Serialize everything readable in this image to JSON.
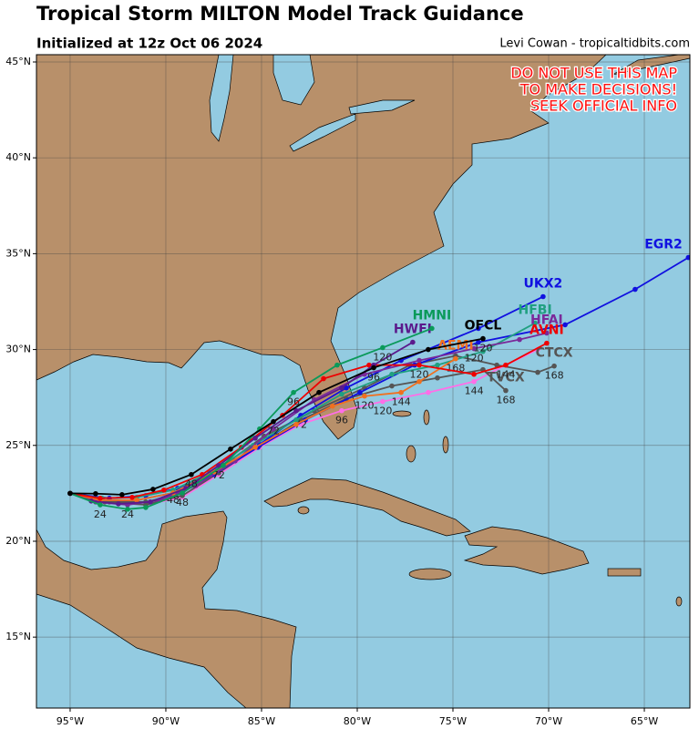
{
  "header": {
    "title": "Tropical Storm MILTON Model Track Guidance",
    "subtitle": "Initialized at 12z Oct 06 2024",
    "credit": "Levi Cowan - tropicaltidbits.com"
  },
  "warning": [
    "DO NOT USE THIS MAP",
    "TO MAKE DECISIONS!",
    "SEEK OFFICIAL INFO"
  ],
  "map": {
    "lon_range": [
      -96.76,
      -62.62
    ],
    "lat_range": [
      11.3,
      45.38
    ],
    "lon_ticks": [
      {
        "value": -95,
        "label": "95°W"
      },
      {
        "value": -90,
        "label": "90°W"
      },
      {
        "value": -85,
        "label": "85°W"
      },
      {
        "value": -80,
        "label": "80°W"
      },
      {
        "value": -75,
        "label": "75°W"
      },
      {
        "value": -70,
        "label": "70°W"
      },
      {
        "value": -65,
        "label": "65°W"
      }
    ],
    "lat_ticks": [
      {
        "value": 15,
        "label": "15°N"
      },
      {
        "value": 20,
        "label": "20°N"
      },
      {
        "value": 25,
        "label": "25°N"
      },
      {
        "value": 30,
        "label": "30°N"
      },
      {
        "value": 35,
        "label": "35°N"
      },
      {
        "value": 40,
        "label": "40°N"
      },
      {
        "value": 45,
        "label": "45°N"
      }
    ]
  },
  "tracks": [
    {
      "color": "#ff6ee8",
      "lon": [
        -95,
        -93.19,
        -91.05,
        -89.14,
        -87.24,
        -85.1,
        -82.95,
        -80.81,
        -78.67,
        -76.29,
        -73.9,
        -72.24,
        -70.57
      ],
      "lat": [
        22.5,
        22.05,
        21.9,
        22.29,
        23.48,
        24.9,
        26.1,
        26.81,
        27.29,
        27.76,
        28.33,
        29.19,
        30.0
      ],
      "hours": [
        null,
        null,
        null,
        null,
        null,
        null,
        null,
        "96",
        "120",
        null,
        "144",
        null,
        null
      ]
    },
    {
      "name": "CTCX",
      "color": "#555555",
      "lon": [
        -95,
        -92.95,
        -91.05,
        -89.14,
        -87.0,
        -84.86,
        -82.24,
        -79.62,
        -77.24,
        -74.86,
        -72.71,
        -70.57,
        -69.71
      ],
      "lat": [
        22.5,
        22.05,
        22.05,
        22.52,
        23.95,
        25.48,
        26.81,
        28.0,
        29.19,
        29.67,
        29.19,
        28.81,
        29.14
      ],
      "hours": [
        null,
        null,
        null,
        null,
        null,
        null,
        null,
        null,
        null,
        null,
        null,
        null,
        "168"
      ]
    },
    {
      "name": "TVCX",
      "color": "#555555",
      "lon": [
        -95,
        -93.19,
        -91.05,
        -89.14,
        -87.24,
        -85.1,
        -82.95,
        -80.57,
        -78.19,
        -75.81,
        -73.43,
        -72.24
      ],
      "lat": [
        22.5,
        22.05,
        21.9,
        22.38,
        23.57,
        25.0,
        26.33,
        27.43,
        28.1,
        28.52,
        28.95,
        27.86
      ],
      "hours": [
        null,
        null,
        null,
        null,
        null,
        null,
        null,
        null,
        null,
        null,
        null,
        "168"
      ]
    },
    {
      "name": "EGR2",
      "color": "#1010e0",
      "lon": [
        -95,
        -93.43,
        -91.52,
        -89.62,
        -87.48,
        -85.19,
        -82.71,
        -79.86,
        -77.0,
        -73.67,
        -69.14,
        -65.48,
        -62.7
      ],
      "lat": [
        22.5,
        22.14,
        22.14,
        22.52,
        23.48,
        24.9,
        26.33,
        27.76,
        29.19,
        30.38,
        31.29,
        33.14,
        34.8
      ],
      "hours": [
        null,
        null,
        null,
        null,
        null,
        null,
        null,
        null,
        null,
        null,
        null,
        null,
        null
      ]
    },
    {
      "name": "UKX2",
      "color": "#1010e0",
      "lon": [
        -95,
        -92.95,
        -91.05,
        -89.38,
        -87.24,
        -85.1,
        -82.95,
        -80.57,
        -77.71,
        -73.67,
        -70.29
      ],
      "lat": [
        22.5,
        22.24,
        22.38,
        22.76,
        23.71,
        25.05,
        26.57,
        28.0,
        29.43,
        31.1,
        32.76
      ],
      "hours": [
        null,
        null,
        null,
        null,
        null,
        null,
        "72",
        null,
        null,
        null,
        null
      ]
    },
    {
      "name": "HFBI",
      "color": "#20a080",
      "lon": [
        -95,
        -93.33,
        -91.52,
        -89.62,
        -87.71,
        -85.43,
        -83.19,
        -80.81,
        -78.19,
        -75.81,
        -73.43,
        -70.71
      ],
      "lat": [
        22.5,
        22.24,
        22.29,
        22.67,
        23.57,
        25.0,
        26.33,
        27.67,
        28.71,
        29.19,
        29.9,
        31.38
      ],
      "hours": [
        null,
        null,
        null,
        "48",
        null,
        null,
        null,
        null,
        null,
        null,
        null,
        null
      ]
    },
    {
      "name": "HFAI",
      "color": "#7a2a9a",
      "lon": [
        -95,
        -93.67,
        -92.0,
        -90.33,
        -88.43,
        -86.38,
        -84.38,
        -82.24,
        -79.62,
        -76.76,
        -73.9,
        -71.52,
        -70.1
      ],
      "lat": [
        22.5,
        22.05,
        21.9,
        22.14,
        22.9,
        24.19,
        25.86,
        27.38,
        28.71,
        29.43,
        30.05,
        30.52,
        30.86
      ],
      "hours": [
        null,
        null,
        "24",
        null,
        null,
        null,
        null,
        null,
        null,
        null,
        "120",
        null,
        null
      ]
    },
    {
      "name": "AEMI",
      "color": "#f07020",
      "lon": [
        -95,
        -93.43,
        -91.52,
        -89.62,
        -87.48,
        -85.33,
        -83.19,
        -81.29,
        -79.62,
        -77.71,
        -76.76,
        -74.86
      ],
      "lat": [
        22.5,
        22.14,
        22.14,
        22.52,
        23.62,
        24.9,
        26.1,
        27.05,
        27.57,
        27.76,
        28.33,
        29.52
      ],
      "hours": [
        null,
        null,
        null,
        null,
        null,
        null,
        null,
        null,
        "120",
        "144",
        null,
        "168"
      ]
    },
    {
      "name": "AVNI",
      "color": "#ee0000",
      "lon": [
        -95,
        -93.43,
        -91.76,
        -90.1,
        -88.1,
        -86.05,
        -83.9,
        -81.76,
        -79.38,
        -76.76,
        -73.9,
        -72.24,
        -70.1
      ],
      "lat": [
        22.5,
        22.24,
        22.29,
        22.67,
        23.48,
        24.9,
        26.57,
        28.48,
        29.19,
        29.19,
        28.71,
        29.19,
        30.33
      ],
      "hours": [
        null,
        null,
        null,
        null,
        null,
        null,
        null,
        null,
        null,
        "120",
        null,
        "144",
        null
      ]
    },
    {
      "name": "HWFI",
      "color": "#5b1a8c",
      "lon": [
        -95,
        -93.9,
        -92.48,
        -90.81,
        -88.95,
        -87.24,
        -85.33,
        -83.19,
        -80.81,
        -79.14,
        -77.1
      ],
      "lat": [
        22.5,
        22.1,
        21.95,
        22.05,
        22.76,
        23.95,
        25.38,
        26.81,
        28.0,
        29.19,
        30.38
      ],
      "hours": [
        null,
        null,
        null,
        null,
        null,
        "72",
        null,
        null,
        null,
        null,
        null
      ]
    },
    {
      "name": "HMNI",
      "color": "#0a9a5a",
      "lon": [
        -95,
        -93.43,
        -92.0,
        -91.05,
        -89.14,
        -87.0,
        -85.1,
        -83.33,
        -81.05,
        -78.67,
        -76.1
      ],
      "lat": [
        22.5,
        21.9,
        21.67,
        21.76,
        22.52,
        23.95,
        25.86,
        27.76,
        29.19,
        30.1,
        31.1
      ],
      "hours": [
        null,
        "24",
        null,
        null,
        "48",
        null,
        null,
        "96",
        null,
        "120",
        null
      ]
    },
    {
      "name": "OFCL",
      "color": "#000000",
      "lon": [
        -95,
        -93.67,
        -92.29,
        -90.67,
        -88.67,
        -86.62,
        -84.38,
        -82.0,
        -79.14,
        -76.29,
        -73.43
      ],
      "lat": [
        22.5,
        22.48,
        22.43,
        22.71,
        23.48,
        24.81,
        26.24,
        27.76,
        29.05,
        30.0,
        30.57
      ],
      "hours": [
        null,
        null,
        null,
        null,
        "48",
        null,
        "72",
        null,
        "96",
        null,
        "120"
      ]
    }
  ]
}
